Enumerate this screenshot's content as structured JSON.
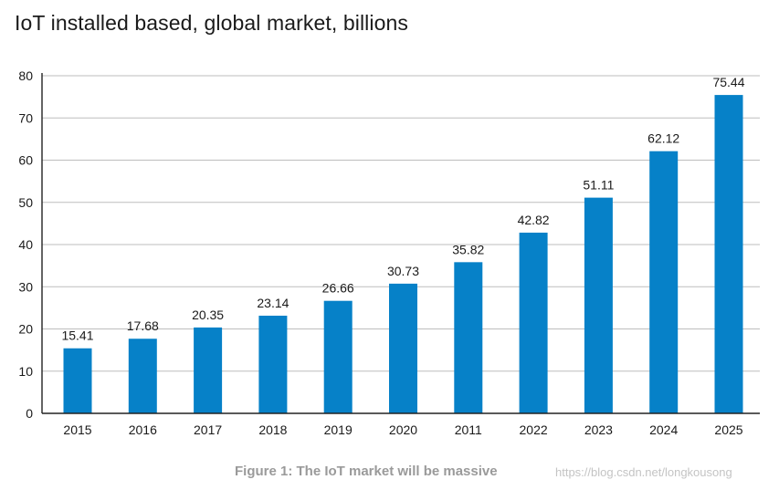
{
  "title": "IoT installed based, global market, billions",
  "caption": "Figure 1: The IoT market will be massive",
  "watermark": "https://blog.csdn.net/longkousong",
  "colors": {
    "bar": "#0681c8",
    "grid": "#bdbdbd",
    "axis": "#222222",
    "text": "#1a1a1a"
  },
  "chart_data": {
    "type": "bar",
    "title": "IoT installed based, global market, billions",
    "xlabel": "",
    "ylabel": "",
    "ylim": [
      0,
      80
    ],
    "yticks": [
      0,
      10,
      20,
      30,
      40,
      50,
      60,
      70,
      80
    ],
    "grid": true,
    "legend": "none",
    "categories": [
      "2015",
      "2016",
      "2017",
      "2018",
      "2019",
      "2020",
      "2011",
      "2022",
      "2023",
      "2024",
      "2025"
    ],
    "values": [
      15.41,
      17.68,
      20.35,
      23.14,
      26.66,
      30.73,
      35.82,
      42.82,
      51.11,
      62.12,
      75.44
    ],
    "value_labels": [
      "15.41",
      "17.68",
      "20.35",
      "23.14",
      "26.66",
      "30.73",
      "35.82",
      "42.82",
      "51.11",
      "62.12",
      "75.44"
    ]
  }
}
